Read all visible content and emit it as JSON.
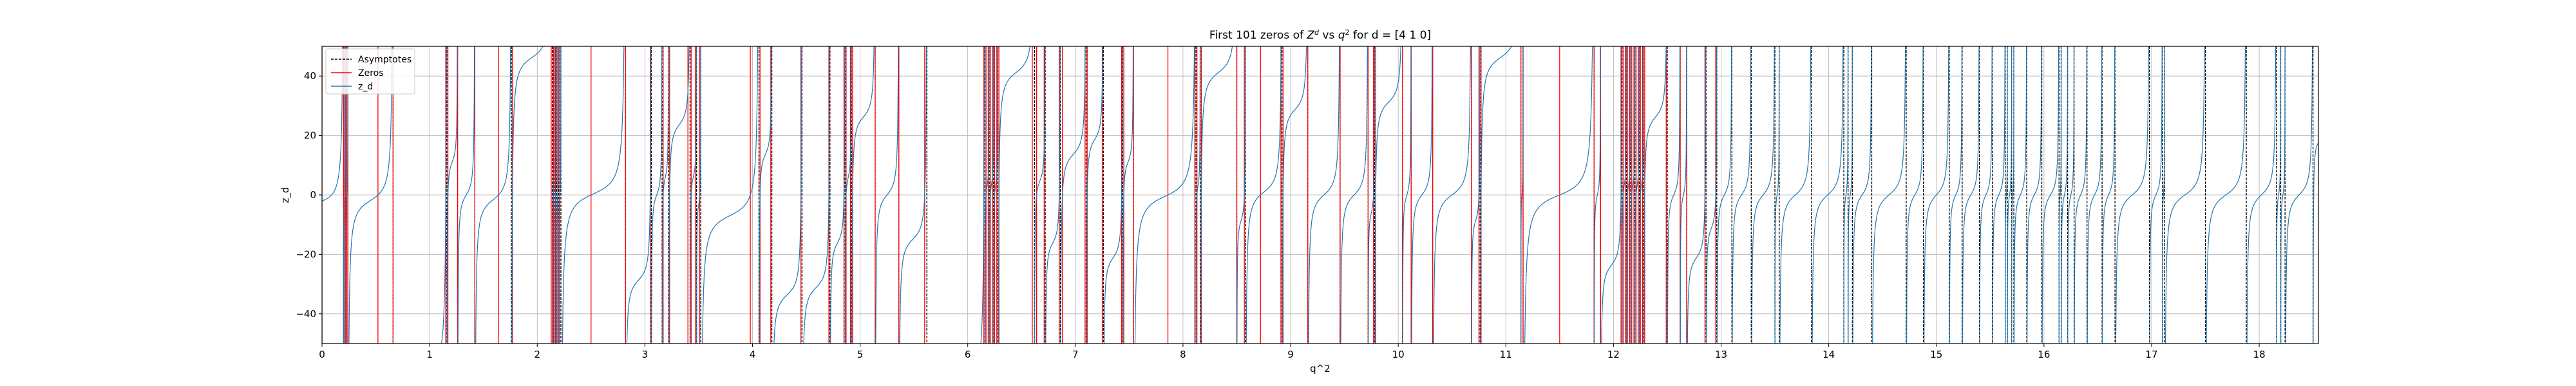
{
  "chart_data": {
    "type": "line",
    "title": "First 101 zeros of Z^d vs q^2 for d = [4 1 0]",
    "title_parts": {
      "pre": "First 101 zeros of ",
      "z": "Z",
      "z_sup": "d",
      "mid": " vs ",
      "q": "q",
      "q_sup": "2",
      "post": " for d = [4 1 0]"
    },
    "xlabel": "q^2",
    "ylabel": "z_d",
    "xlim": [
      0,
      18.55
    ],
    "ylim": [
      -50,
      50
    ],
    "x_ticks": [
      0,
      1,
      2,
      3,
      4,
      5,
      6,
      7,
      8,
      9,
      10,
      11,
      12,
      13,
      14,
      15,
      16,
      17,
      18
    ],
    "y_ticks": [
      -40,
      -20,
      0,
      20,
      40
    ],
    "grid": true,
    "legend_position": "top-left",
    "colors": {
      "asymptote": "#000000",
      "zero": "#ff0000",
      "curve": "#1f77b4",
      "grid": "#b0b0b0"
    },
    "series": [
      {
        "name": "Asymptotes",
        "style": "dashed vertical lines",
        "x": [
          0.2,
          0.22,
          0.24,
          0.66,
          1.16,
          1.26,
          1.42,
          1.76,
          2.14,
          2.16,
          2.18,
          2.2,
          2.22,
          2.82,
          3.06,
          3.16,
          3.22,
          3.42,
          3.48,
          3.52,
          4.06,
          4.18,
          4.46,
          4.72,
          4.86,
          4.92,
          5.14,
          5.36,
          5.62,
          6.16,
          6.2,
          6.24,
          6.28,
          6.62,
          6.72,
          6.86,
          7.1,
          7.26,
          7.44,
          7.54,
          8.12,
          8.16,
          8.5,
          8.58,
          8.92,
          9.16,
          9.46,
          9.72,
          9.78,
          10.04,
          10.12,
          10.32,
          10.68,
          10.76,
          11.14,
          11.16,
          11.82,
          11.88,
          12.08,
          12.12,
          12.16,
          12.2,
          12.24,
          12.28,
          12.5,
          12.62,
          12.68,
          12.86,
          12.96,
          13.1,
          13.28,
          13.5,
          13.54,
          13.84,
          14.14,
          14.18,
          14.22,
          14.4,
          14.72,
          14.88,
          15.12,
          15.24,
          15.4,
          15.52,
          15.64,
          15.66,
          15.7,
          15.72,
          15.84,
          15.98,
          16.14,
          16.16,
          16.22,
          16.28,
          16.4,
          16.54,
          16.66,
          16.98,
          17.1,
          17.12,
          17.5,
          17.88,
          18.16,
          18.2,
          18.24,
          18.5
        ]
      },
      {
        "name": "Zeros",
        "style": "solid vertical lines",
        "x": [
          0.0,
          0.2,
          0.21,
          0.22,
          0.23,
          0.24,
          0.52,
          0.66,
          1.15,
          1.17,
          1.26,
          1.42,
          1.64,
          1.77,
          2.13,
          2.15,
          2.17,
          2.19,
          2.21,
          2.5,
          2.82,
          3.05,
          3.17,
          3.23,
          3.4,
          3.43,
          3.47,
          3.51,
          3.98,
          4.07,
          4.17,
          4.45,
          4.71,
          4.85,
          4.87,
          4.91,
          4.93,
          5.14,
          5.36,
          5.6,
          6.15,
          6.17,
          6.19,
          6.21,
          6.23,
          6.25,
          6.27,
          6.29,
          6.6,
          6.64,
          6.71,
          6.85,
          6.88,
          7.09,
          7.11,
          7.25,
          7.43,
          7.45,
          7.54,
          7.86,
          8.11,
          8.13,
          8.17,
          8.5,
          8.57,
          8.72,
          8.91,
          8.93,
          9.16,
          9.46,
          9.72,
          9.77,
          9.79,
          10.04,
          10.12,
          10.32,
          10.68,
          10.75,
          10.77,
          11.14,
          11.16,
          11.5,
          11.82,
          11.88,
          12.07,
          12.09,
          12.11,
          12.13,
          12.15,
          12.17,
          12.19,
          12.21,
          12.23,
          12.25,
          12.27,
          12.29,
          12.49,
          12.62,
          12.68,
          12.85,
          12.95
        ]
      },
      {
        "name": "z_d",
        "style": "solid curve"
      }
    ]
  }
}
